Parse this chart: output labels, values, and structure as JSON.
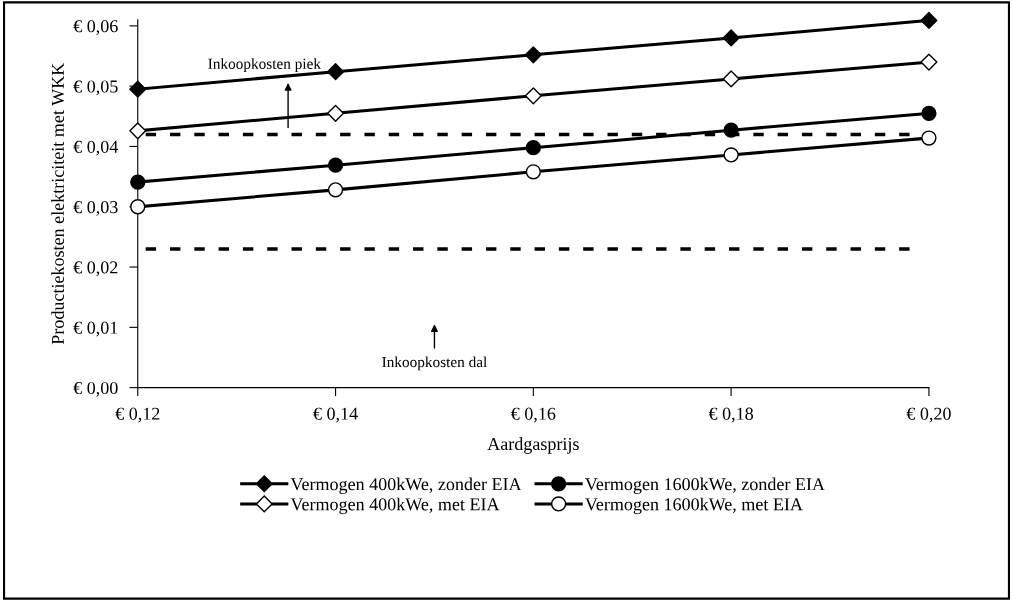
{
  "chart_data": {
    "type": "line",
    "xlabel": "Aardgasprijs",
    "ylabel": "Productiekosten elektriciteit met WKK",
    "x": [
      0.12,
      0.14,
      0.16,
      0.18,
      0.2
    ],
    "series": [
      {
        "name": "Vermogen 400kWe, zonder EIA",
        "color": "#000000",
        "marker": "diamond",
        "colors": [
          "#000000",
          "#000000",
          "#000000",
          "#000000",
          "#000000"
        ],
        "values": [
          0.0495,
          0.0524,
          0.0552,
          0.058,
          0.0609
        ]
      },
      {
        "name": "Vermogen 1600kWe, zonder EIA",
        "color": "#000000",
        "marker": "circle",
        "colors": [
          "#000000",
          "#000000",
          "#000000",
          "#000000",
          "#000000"
        ],
        "values": [
          0.0341,
          0.0369,
          0.0398,
          0.0427,
          0.0455
        ]
      },
      {
        "name": "Vermogen 400kWe, met EIA",
        "color": "#000000",
        "marker": "diamond",
        "colors": [
          "#ffffff",
          "#ffffff",
          "#ffffff",
          "#ffffff",
          "#ffffff"
        ],
        "values": [
          0.0426,
          0.0455,
          0.0484,
          0.0512,
          0.054
        ]
      },
      {
        "name": "Vermogen 1600kWe, met EIA",
        "color": "#000000",
        "marker": "circle",
        "colors": [
          "#ffffff",
          "#ffffff",
          "#ffffff",
          "#ffffff",
          "#ffffff"
        ],
        "values": [
          0.03,
          0.0328,
          0.0358,
          0.0386,
          0.0414
        ]
      }
    ],
    "ref_lines": [
      {
        "axis": "y",
        "value": 0.042,
        "color": "#000000",
        "line_style": "dashed"
      },
      {
        "axis": "y",
        "value": 0.023,
        "color": "#000000",
        "line_style": "dashed"
      }
    ],
    "annotations": [
      "Inkoopkosten piek",
      "Inkoopkosten dal"
    ],
    "xlim": [
      0.12,
      0.2
    ],
    "xticks": [
      {
        "value": 0.12,
        "label": "€ 0,12"
      },
      {
        "value": 0.14,
        "label": "€ 0,14"
      },
      {
        "value": 0.16,
        "label": "€ 0,16"
      },
      {
        "value": 0.18,
        "label": "€ 0,18"
      },
      {
        "value": 0.2,
        "label": "€ 0,20"
      }
    ],
    "ylim": [
      0,
      0.061
    ],
    "yticks": [
      {
        "value": 0,
        "label": "€ 0,00"
      },
      {
        "value": 0.01,
        "label": "€ 0,01"
      },
      {
        "value": 0.02,
        "label": "€ 0,02"
      },
      {
        "value": 0.03,
        "label": "€ 0,03"
      },
      {
        "value": 0.04,
        "label": "€ 0,04"
      },
      {
        "value": 0.05,
        "label": "€ 0,05"
      },
      {
        "value": 0.06,
        "label": "€ 0,06"
      }
    ],
    "grid": false,
    "legend": "bottom"
  }
}
